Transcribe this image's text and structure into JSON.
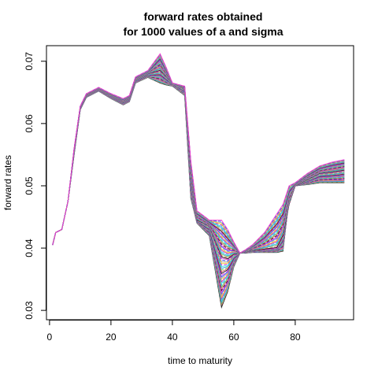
{
  "chart_data": {
    "type": "line",
    "title_line1": "forward rates obtained",
    "title_line2": "for 1000 values of a and sigma",
    "xlabel": "time to maturity",
    "ylabel": "forward rates",
    "xlim": [
      -1,
      99
    ],
    "ylim": [
      0.0285,
      0.0725
    ],
    "x_ticks": [
      0,
      20,
      40,
      60,
      80
    ],
    "x_tick_labels": [
      "0",
      "20",
      "40",
      "60",
      "80"
    ],
    "y_ticks": [
      0.03,
      0.04,
      0.05,
      0.06,
      0.07
    ],
    "y_tick_labels": [
      "0.03",
      "0.04",
      "0.05",
      "0.06",
      "0.07"
    ],
    "grid": false,
    "legend": "none",
    "curve_count_drawn": 60,
    "x": [
      1,
      2,
      4,
      6,
      8,
      10,
      12,
      16,
      20,
      24,
      26,
      28,
      32,
      36,
      38,
      40,
      44,
      46,
      48,
      52,
      56,
      58,
      60,
      62,
      64,
      66,
      70,
      74,
      76,
      78,
      80,
      84,
      88,
      92,
      96
    ],
    "envelope_mid": [
      0.0405,
      0.0425,
      0.043,
      0.0475,
      0.0555,
      0.0625,
      0.0645,
      0.0655,
      0.0645,
      0.0635,
      0.064,
      0.067,
      0.068,
      0.0685,
      0.0675,
      0.0665,
      0.0655,
      0.051,
      0.0445,
      0.0435,
      0.0385,
      0.0382,
      0.039,
      0.0392,
      0.0395,
      0.0396,
      0.0398,
      0.04,
      0.042,
      0.047,
      0.05,
      0.051,
      0.052,
      0.0522,
      0.0525
    ],
    "envelope_low": [
      0.0405,
      0.0425,
      0.043,
      0.0475,
      0.055,
      0.0622,
      0.0642,
      0.0652,
      0.064,
      0.063,
      0.0635,
      0.0665,
      0.0674,
      0.0665,
      0.0662,
      0.066,
      0.0645,
      0.048,
      0.044,
      0.042,
      0.0305,
      0.033,
      0.037,
      0.0392,
      0.0392,
      0.0393,
      0.0393,
      0.0393,
      0.0395,
      0.048,
      0.05,
      0.0502,
      0.0505,
      0.0505,
      0.0505
    ],
    "envelope_high": [
      0.0405,
      0.0425,
      0.043,
      0.0475,
      0.056,
      0.0628,
      0.0648,
      0.0658,
      0.0648,
      0.064,
      0.0645,
      0.0675,
      0.0685,
      0.0712,
      0.069,
      0.0665,
      0.066,
      0.054,
      0.046,
      0.0445,
      0.0445,
      0.043,
      0.041,
      0.0392,
      0.0398,
      0.0405,
      0.0425,
      0.0455,
      0.047,
      0.05,
      0.0505,
      0.052,
      0.0532,
      0.0538,
      0.0542
    ],
    "palette": [
      "#000000",
      "#DF536B",
      "#61D04F",
      "#2297E6",
      "#28E2E5",
      "#CD0BBC",
      "#F5C710",
      "#9E9E9E",
      "#3333ff",
      "#ff33cc"
    ]
  }
}
